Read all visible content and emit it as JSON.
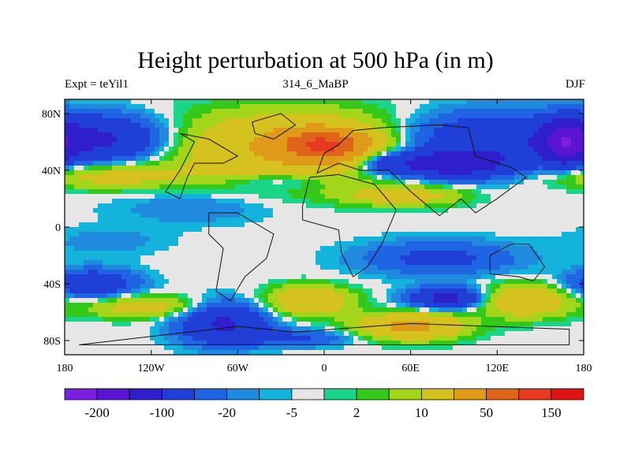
{
  "chart_data": {
    "type": "heatmap",
    "title": "Height perturbation at 500 hPa (in m)",
    "subtitle_left": "Expt = teYil1",
    "subtitle_center": "314_6_MaBP",
    "subtitle_right": "DJF",
    "x_ticks": [
      "180",
      "120W",
      "60W",
      "0",
      "60E",
      "120E",
      "180"
    ],
    "x_range": [
      -180,
      180
    ],
    "y_ticks": [
      "80N",
      "40N",
      "0",
      "40S",
      "80S"
    ],
    "y_range": [
      -90,
      90
    ],
    "colorbar": {
      "colors": [
        "#7a1fe0",
        "#5a14d2",
        "#2f1ecc",
        "#1f3fd7",
        "#1f65e3",
        "#1f8ade",
        "#14b3dc",
        "#e6e6e6",
        "#1ad488",
        "#33c81a",
        "#a3d61a",
        "#d6c21f",
        "#e09a1a",
        "#e0631a",
        "#e6391f",
        "#e01414"
      ],
      "labels": [
        "-200",
        "-100",
        "-20",
        "-5",
        "2",
        "10",
        "50",
        "150"
      ]
    },
    "field_blobs": [
      {
        "lon": -155,
        "lat": 62,
        "rlon": 45,
        "rlat": 16,
        "value": -55
      },
      {
        "lon": -150,
        "lat": 36,
        "rlon": 55,
        "rlat": 9,
        "value": 28
      },
      {
        "lon": -90,
        "lat": 14,
        "rlon": 55,
        "rlat": 12,
        "value": -10
      },
      {
        "lon": -20,
        "lat": 56,
        "rlon": 80,
        "rlat": 24,
        "value": 55
      },
      {
        "lon": 0,
        "lat": 58,
        "rlon": 28,
        "rlat": 10,
        "value": 120
      },
      {
        "lon": -30,
        "lat": 33,
        "rlon": 35,
        "rlat": 7,
        "value": -18
      },
      {
        "lon": 110,
        "lat": 60,
        "rlon": 65,
        "rlat": 20,
        "value": -45
      },
      {
        "lon": 85,
        "lat": 44,
        "rlon": 40,
        "rlat": 9,
        "value": -70
      },
      {
        "lon": 168,
        "lat": 60,
        "rlon": 16,
        "rlat": 14,
        "value": -110
      },
      {
        "lon": 55,
        "lat": 22,
        "rlon": 40,
        "rlat": 7,
        "value": 30
      },
      {
        "lon": -160,
        "lat": -40,
        "rlon": 30,
        "rlat": 10,
        "value": -40
      },
      {
        "lon": -125,
        "lat": -56,
        "rlon": 40,
        "rlat": 8,
        "value": 30
      },
      {
        "lon": -70,
        "lat": -68,
        "rlon": 30,
        "rlat": 14,
        "value": -55
      },
      {
        "lon": -10,
        "lat": -52,
        "rlon": 28,
        "rlat": 10,
        "value": 45
      },
      {
        "lon": 60,
        "lat": -70,
        "rlon": 35,
        "rlat": 9,
        "value": 60
      },
      {
        "lon": 80,
        "lat": -22,
        "rlon": 55,
        "rlat": 12,
        "value": -25
      },
      {
        "lon": 85,
        "lat": -50,
        "rlon": 25,
        "rlat": 7,
        "value": -60
      },
      {
        "lon": 140,
        "lat": -52,
        "rlon": 30,
        "rlat": 11,
        "value": 45
      },
      {
        "lon": -150,
        "lat": -10,
        "rlon": 40,
        "rlat": 10,
        "value": -8
      },
      {
        "lon": -20,
        "lat": -78,
        "rlon": 40,
        "rlat": 6,
        "value": -22
      },
      {
        "lon": 40,
        "lat": 45,
        "rlon": 20,
        "rlat": 8,
        "value": -30
      }
    ],
    "coastlines": [
      [
        [
          -50,
          74
        ],
        [
          -30,
          80
        ],
        [
          -20,
          72
        ],
        [
          -35,
          62
        ],
        [
          -48,
          66
        ],
        [
          -50,
          74
        ]
      ],
      [
        [
          10,
          58
        ],
        [
          20,
          68
        ],
        [
          40,
          70
        ],
        [
          80,
          72
        ],
        [
          100,
          70
        ],
        [
          105,
          50
        ],
        [
          130,
          42
        ],
        [
          140,
          35
        ],
        [
          120,
          20
        ],
        [
          105,
          10
        ],
        [
          95,
          20
        ],
        [
          80,
          8
        ],
        [
          60,
          25
        ],
        [
          45,
          40
        ],
        [
          25,
          40
        ],
        [
          10,
          45
        ],
        [
          -5,
          38
        ],
        [
          0,
          52
        ],
        [
          10,
          58
        ]
      ],
      [
        [
          -10,
          35
        ],
        [
          -15,
          15
        ],
        [
          -15,
          5
        ],
        [
          10,
          -2
        ],
        [
          12,
          -18
        ],
        [
          20,
          -35
        ],
        [
          30,
          -28
        ],
        [
          40,
          -12
        ],
        [
          50,
          12
        ],
        [
          35,
          30
        ],
        [
          10,
          37
        ],
        [
          -10,
          35
        ]
      ],
      [
        [
          115,
          -20
        ],
        [
          130,
          -12
        ],
        [
          142,
          -12
        ],
        [
          153,
          -28
        ],
        [
          145,
          -38
        ],
        [
          135,
          -35
        ],
        [
          115,
          -33
        ],
        [
          115,
          -20
        ]
      ],
      [
        [
          -80,
          10
        ],
        [
          -60,
          10
        ],
        [
          -35,
          -5
        ],
        [
          -40,
          -22
        ],
        [
          -55,
          -35
        ],
        [
          -65,
          -52
        ],
        [
          -75,
          -45
        ],
        [
          -70,
          -15
        ],
        [
          -80,
          -5
        ],
        [
          -80,
          10
        ]
      ],
      [
        [
          -100,
          20
        ],
        [
          -95,
          35
        ],
        [
          -90,
          45
        ],
        [
          -70,
          45
        ],
        [
          -60,
          50
        ],
        [
          -80,
          62
        ],
        [
          -100,
          66
        ],
        [
          -90,
          60
        ],
        [
          -100,
          40
        ],
        [
          -110,
          25
        ],
        [
          -100,
          20
        ]
      ],
      [
        [
          -60,
          -70
        ],
        [
          -20,
          -74
        ],
        [
          60,
          -68
        ],
        [
          170,
          -72
        ],
        [
          170,
          -83
        ],
        [
          -170,
          -83
        ],
        [
          -60,
          -70
        ]
      ]
    ]
  }
}
